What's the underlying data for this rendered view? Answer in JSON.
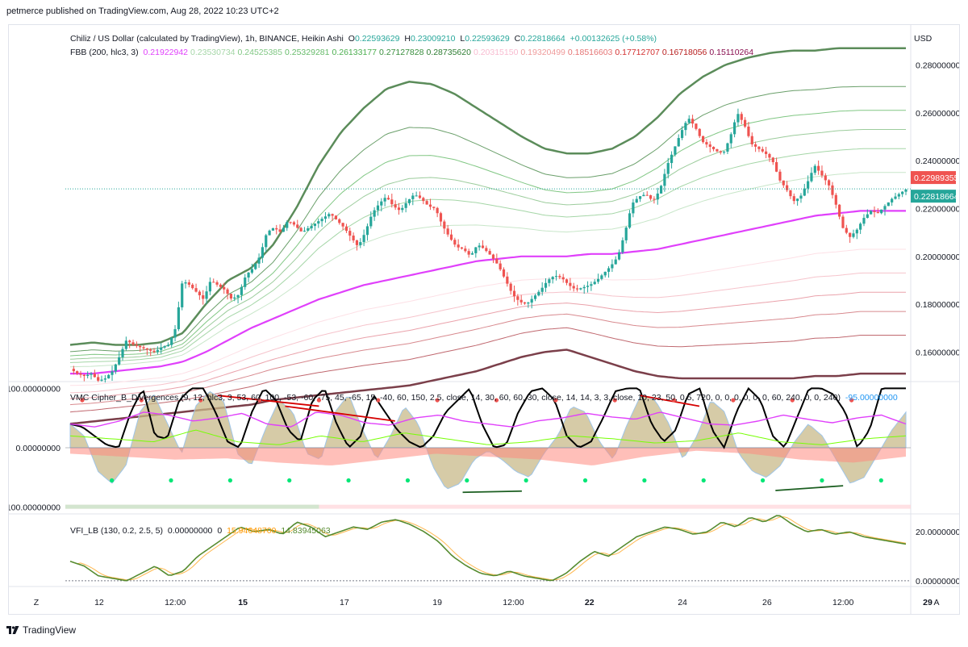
{
  "publisher": "petmerce published on TradingView.com, Aug 28, 2022 10:23 UTC+2",
  "currency": "USD",
  "main_legend": {
    "title": "Chiliz / US Dollar (calculated by TradingView), 1h, BINANCE, Heikin Ashi",
    "o_label": "O",
    "o_value": "0.22593629",
    "h_label": "H",
    "h_value": "0.23009210",
    "l_label": "L",
    "l_value": "0.22593629",
    "c_label": "C",
    "c_value": "0.22818664",
    "change": "+0.00132625 (+0.58%)"
  },
  "fbb_legend": {
    "label": "FBB (200, hlc3, 3)",
    "values": [
      {
        "v": "0.21922942",
        "color": "#e040fb"
      },
      {
        "v": "0.23530734",
        "color": "#a5d6a7"
      },
      {
        "v": "0.24525385",
        "color": "#81c784"
      },
      {
        "v": "0.25329281",
        "color": "#66bb6a"
      },
      {
        "v": "0.26133177",
        "color": "#4caf50"
      },
      {
        "v": "0.27127828",
        "color": "#388e3c"
      },
      {
        "v": "0.28735620",
        "color": "#2e7d32"
      },
      {
        "v": "0.20315150",
        "color": "#f8bbd0"
      },
      {
        "v": "0.19320499",
        "color": "#ef9a9a"
      },
      {
        "v": "0.18516603",
        "color": "#e57373"
      },
      {
        "v": "0.17712707",
        "color": "#d32f2f"
      },
      {
        "v": "0.16718056",
        "color": "#b71c1c"
      },
      {
        "v": "0.15110264",
        "color": "#880e4f"
      }
    ]
  },
  "vmc_legend": {
    "label": "VMC Cipher_B_Divergences (9, 12, hlc3, 3, 53, 60, 100, -53, -60, -75, 45, -65, 15, -40, 60, 150, 2.5, close, 14, 30, 60, 60, 30, close, 14, 14, 3, 3, close, 10, 23, 50, 0.5, 720, 0, 0, 0, 0, 0, 0, 60, 240, 0, 0, 240)",
    "value": "-95.00000000"
  },
  "vfi_legend": {
    "label": "VFI_LB (130, 0.2, 2.5, 5)",
    "v1": "0.00000000",
    "v2": "0",
    "v3": "15.94648700",
    "v4": "14.83945063"
  },
  "footer": {
    "left_button": "Z",
    "right_button": "A",
    "logo_text": "TradingView"
  },
  "colors": {
    "bull": "#26a69a",
    "bear": "#ef5350",
    "basis": "#e040fb",
    "upper_band": "#5b8c5a",
    "lower_band": "#7b3f4a",
    "current_price": "#26a69a",
    "alert_price": "#ef5350",
    "wave": "#000000"
  },
  "chart_data": [
    {
      "type": "candlestick",
      "title": "Chiliz / US Dollar (calculated by TradingView), 1h, BINANCE, Heikin Ashi",
      "ylabel": "USD",
      "ylim": [
        0.148,
        0.296
      ],
      "y_ticks": [
        "0.28000000",
        "0.26000000",
        "0.24000000",
        "0.22000000",
        "0.20000000",
        "0.18000000",
        "0.16000000"
      ],
      "y_tick_values": [
        0.28,
        0.26,
        0.24,
        0.22,
        0.2,
        0.18,
        0.16
      ],
      "x_ticks": [
        "12",
        "12:00",
        "15",
        "17",
        "19",
        "12:00",
        "22",
        "24",
        "26",
        "12:00",
        "29"
      ],
      "x_ticks_bold": [
        false,
        false,
        true,
        false,
        false,
        false,
        true,
        false,
        false,
        false,
        true
      ],
      "price_labels": [
        {
          "label": "0.22989355",
          "value": 0.22989355,
          "color": "#ef5350"
        },
        {
          "label": "0.22818664",
          "value": 0.22818664,
          "color": "#26a69a"
        }
      ],
      "close_series_sampled": [
        0.153,
        0.151,
        0.15,
        0.151,
        0.148,
        0.149,
        0.152,
        0.158,
        0.165,
        0.163,
        0.162,
        0.161,
        0.16,
        0.162,
        0.163,
        0.17,
        0.19,
        0.188,
        0.185,
        0.182,
        0.19,
        0.188,
        0.186,
        0.182,
        0.184,
        0.192,
        0.195,
        0.2,
        0.21,
        0.212,
        0.21,
        0.215,
        0.213,
        0.21,
        0.212,
        0.214,
        0.216,
        0.218,
        0.215,
        0.212,
        0.208,
        0.204,
        0.21,
        0.218,
        0.222,
        0.225,
        0.221,
        0.219,
        0.223,
        0.226,
        0.224,
        0.221,
        0.22,
        0.213,
        0.208,
        0.204,
        0.203,
        0.2,
        0.205,
        0.203,
        0.2,
        0.196,
        0.19,
        0.184,
        0.181,
        0.18,
        0.183,
        0.186,
        0.19,
        0.192,
        0.191,
        0.188,
        0.186,
        0.187,
        0.188,
        0.19,
        0.193,
        0.196,
        0.2,
        0.21,
        0.222,
        0.225,
        0.226,
        0.223,
        0.228,
        0.238,
        0.245,
        0.252,
        0.258,
        0.254,
        0.248,
        0.246,
        0.244,
        0.243,
        0.25,
        0.26,
        0.255,
        0.247,
        0.245,
        0.243,
        0.24,
        0.232,
        0.228,
        0.223,
        0.225,
        0.231,
        0.238,
        0.234,
        0.23,
        0.222,
        0.212,
        0.208,
        0.211,
        0.216,
        0.219,
        0.218,
        0.221,
        0.224,
        0.226,
        0.228
      ],
      "basis_series_sampled": [
        0.151,
        0.151,
        0.152,
        0.153,
        0.154,
        0.156,
        0.16,
        0.165,
        0.17,
        0.174,
        0.178,
        0.182,
        0.185,
        0.188,
        0.19,
        0.192,
        0.194,
        0.196,
        0.198,
        0.199,
        0.2,
        0.2,
        0.2,
        0.201,
        0.201,
        0.202,
        0.203,
        0.205,
        0.207,
        0.209,
        0.211,
        0.213,
        0.215,
        0.217,
        0.218,
        0.219,
        0.219,
        0.219
      ],
      "upper_band_series_sampled": [
        0.163,
        0.164,
        0.163,
        0.163,
        0.164,
        0.168,
        0.18,
        0.19,
        0.195,
        0.205,
        0.22,
        0.238,
        0.252,
        0.262,
        0.27,
        0.273,
        0.272,
        0.268,
        0.262,
        0.256,
        0.25,
        0.245,
        0.243,
        0.243,
        0.245,
        0.25,
        0.258,
        0.268,
        0.275,
        0.28,
        0.283,
        0.285,
        0.286,
        0.286,
        0.287,
        0.287,
        0.287,
        0.287
      ],
      "lower_band_series_sampled": [
        0.13,
        0.131,
        0.132,
        0.133,
        0.134,
        0.135,
        0.136,
        0.137,
        0.138,
        0.14,
        0.141,
        0.142,
        0.143,
        0.144,
        0.145,
        0.146,
        0.148,
        0.15,
        0.152,
        0.155,
        0.158,
        0.16,
        0.161,
        0.158,
        0.155,
        0.152,
        0.15,
        0.149,
        0.149,
        0.149,
        0.149,
        0.149,
        0.149,
        0.15,
        0.15,
        0.151,
        0.151,
        0.151
      ]
    },
    {
      "type": "line",
      "title": "VMC Cipher_B_Divergences",
      "ylim": [
        -110,
        110
      ],
      "y_ticks": [
        "100.00000000",
        "0.00000000",
        "-100.00000000"
      ],
      "y_tick_values": [
        100,
        0,
        -100
      ],
      "wave_series_sampled": [
        40,
        35,
        20,
        5,
        0,
        60,
        100,
        20,
        15,
        80,
        100,
        100,
        60,
        10,
        0,
        60,
        100,
        80,
        30,
        10,
        80,
        100,
        40,
        0,
        20,
        90,
        60,
        30,
        10,
        0,
        20,
        60,
        80,
        100,
        40,
        0,
        5,
        60,
        95,
        100,
        80,
        20,
        0,
        10,
        50,
        95,
        100,
        100,
        40,
        10,
        30,
        90,
        100,
        30,
        0,
        60,
        100,
        80,
        20,
        0,
        50,
        100,
        100,
        90,
        60,
        0,
        30,
        100,
        100,
        100
      ],
      "money_flow_series_sampled": [
        40,
        20,
        -40,
        -60,
        -30,
        60,
        90,
        40,
        -10,
        70,
        95,
        80,
        -10,
        -30,
        30,
        80,
        60,
        -10,
        -20,
        60,
        90,
        30,
        -20,
        20,
        70,
        40,
        -30,
        -70,
        -60,
        -20,
        -5,
        -20,
        -40,
        -50,
        -10,
        20,
        70,
        60,
        10,
        -20,
        40,
        90,
        80,
        40,
        -20,
        20,
        80,
        60,
        -10,
        -40,
        -50,
        -30,
        10,
        40,
        20,
        -20,
        -60,
        -50,
        -10,
        30,
        60
      ]
    },
    {
      "type": "line",
      "title": "VFI_LB",
      "ylim": [
        -2,
        27
      ],
      "y_ticks": [
        "20.00000000",
        "0.00000000"
      ],
      "y_tick_values": [
        20,
        0
      ],
      "series": [
        {
          "name": "VFI",
          "values": [
            8,
            6,
            2,
            1,
            0,
            3,
            6,
            2,
            4,
            10,
            14,
            18,
            22,
            20,
            21,
            19,
            24,
            22,
            18,
            20,
            22,
            21,
            24,
            25,
            23,
            20,
            16,
            10,
            6,
            3,
            2,
            4,
            2,
            1,
            0,
            3,
            8,
            12,
            10,
            14,
            18,
            20,
            22,
            21,
            19,
            20,
            24,
            22,
            26,
            24,
            27,
            23,
            20,
            21,
            19,
            20,
            18,
            17,
            16,
            15
          ]
        }
      ]
    }
  ]
}
